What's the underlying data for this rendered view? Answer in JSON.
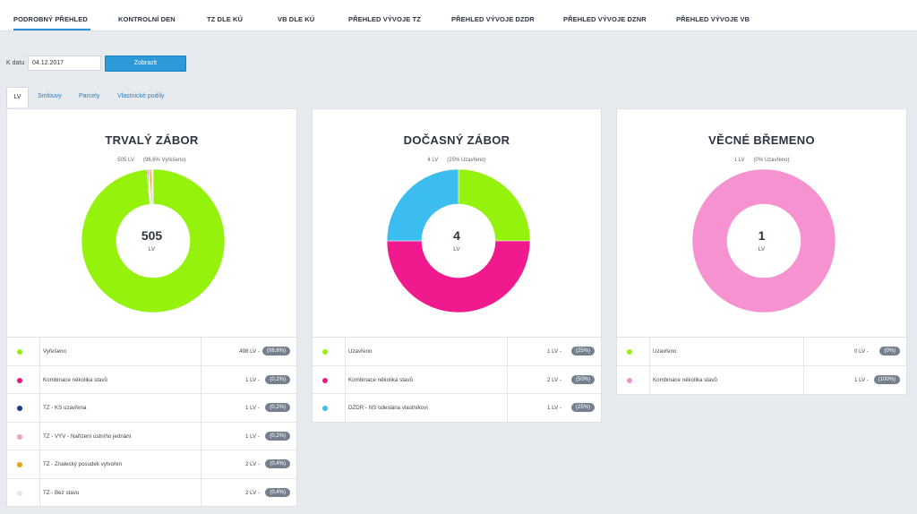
{
  "nav": {
    "tabs": [
      {
        "label": "PODROBNÝ PŘEHLED",
        "active": true
      },
      {
        "label": "KONTROLNÍ DEN"
      },
      {
        "label": "TZ DLE KÚ"
      },
      {
        "label": "VB DLE KÚ"
      },
      {
        "label": "PŘEHLED VÝVOJE TZ"
      },
      {
        "label": "PŘEHLED VÝVOJE DZDR"
      },
      {
        "label": "PŘEHLED VÝVOJE DZNR"
      },
      {
        "label": "PŘEHLED VÝVOJE VB"
      }
    ]
  },
  "filter": {
    "label": "K datu",
    "date_value": "04.12.2017",
    "button_label": "Zobrazit"
  },
  "subtabs": [
    "LV",
    "Smlouvy",
    "Parcely",
    "Vlastnické podíly"
  ],
  "cards": [
    {
      "title": "TRVALÝ ZÁBOR",
      "sub_count": "505 LV",
      "sub_status": "(98,6% Vyřešeno)",
      "center_value": "505",
      "center_unit": "LV",
      "legend": [
        {
          "label": "Vyřešeno",
          "value": "498 LV -",
          "pct": "(98,6%)",
          "color": "#94f20c",
          "count": 498
        },
        {
          "label": "Kombinace několika stavů",
          "value": "1 LV -",
          "pct": "(0,2%)",
          "color": "#e8177f",
          "count": 1
        },
        {
          "label": "TZ - KS uzavřena",
          "value": "1 LV -",
          "pct": "(0,2%)",
          "color": "#1c3d8c",
          "count": 1
        },
        {
          "label": "TZ - VYV - Nařízení ústního jednání",
          "value": "1 LV -",
          "pct": "(0,2%)",
          "color": "#f2a3ad",
          "count": 1
        },
        {
          "label": "TZ - Znalecký posudek vytvořen",
          "value": "2 LV -",
          "pct": "(0,4%)",
          "color": "#e6a01c",
          "count": 2
        },
        {
          "label": "TZ - Bez stavu",
          "value": "2 LV -",
          "pct": "(0,4%)",
          "color": "#e5e7ea",
          "count": 2
        }
      ]
    },
    {
      "title": "DOČASNÝ ZÁBOR",
      "sub_count": "4 LV",
      "sub_status": "(25% Uzavřeno)",
      "center_value": "4",
      "center_unit": "LV",
      "legend": [
        {
          "label": "Uzavřeno",
          "value": "1 LV -",
          "pct": "(25%)",
          "color": "#94f20c",
          "count": 1
        },
        {
          "label": "Kombinace několika stavů",
          "value": "2 LV -",
          "pct": "(50%)",
          "color": "#f01a8e",
          "count": 2
        },
        {
          "label": "DZDR - NS odeslána vlastníkovi",
          "value": "1 LV -",
          "pct": "(25%)",
          "color": "#3bbdf0",
          "count": 1
        }
      ]
    },
    {
      "title": "VĚCNÉ BŘEMENO",
      "sub_count": "1 LV",
      "sub_status": "(0% Uzavřeno)",
      "center_value": "1",
      "center_unit": "LV",
      "legend": [
        {
          "label": "Uzavřeno",
          "value": "0 LV -",
          "pct": "(0%)",
          "color": "#94f20c",
          "count": 0
        },
        {
          "label": "Kombinace několika stavů",
          "value": "1 LV -",
          "pct": "(100%)",
          "color": "#f592cf",
          "count": 1
        }
      ]
    }
  ]
}
